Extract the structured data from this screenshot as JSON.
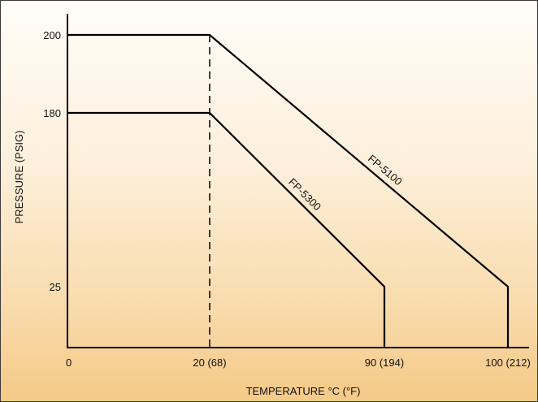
{
  "chart_data": {
    "type": "line",
    "xlabel": "TEMPERATURE °C (°F)",
    "ylabel": "PRESSURE (PSIG)",
    "x_ticks": [
      {
        "value": 0,
        "label": "0"
      },
      {
        "value": 20,
        "label": "20 (68)"
      },
      {
        "value": 90,
        "label": "90 (194)"
      },
      {
        "value": 100,
        "label": "100 (212)"
      }
    ],
    "y_ticks": [
      {
        "value": 25,
        "label": "25"
      },
      {
        "value": 180,
        "label": "180"
      },
      {
        "value": 200,
        "label": "200"
      }
    ],
    "series": [
      {
        "name": "FP-5100",
        "points": [
          [
            0,
            200
          ],
          [
            20,
            200
          ],
          [
            100,
            25
          ],
          [
            100,
            0
          ]
        ]
      },
      {
        "name": "FP-5300",
        "points": [
          [
            0,
            180
          ],
          [
            20,
            180
          ],
          [
            90,
            25
          ],
          [
            90,
            0
          ]
        ]
      }
    ],
    "reference_line": {
      "x": 20,
      "style": "dashed"
    },
    "grid": false,
    "legend": "none"
  },
  "colors": {
    "line": "#000000",
    "background_top": "#fffdf8",
    "background_bottom": "#f6c987"
  }
}
